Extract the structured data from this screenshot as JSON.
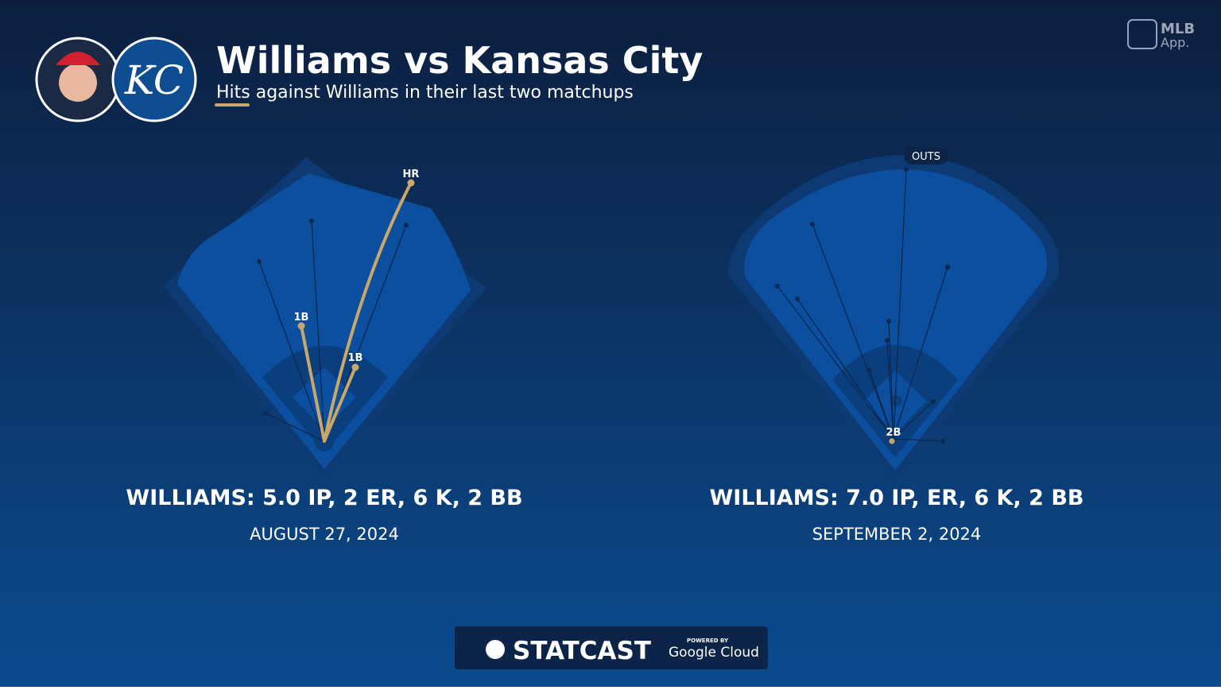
{
  "header": {
    "title": "Williams vs Kansas City",
    "subtitle": "Hits against Williams in their last two matchups",
    "team_logo": "KC"
  },
  "brand": {
    "mlb": "MLB",
    "app": "App.",
    "statcast": "STATCAST",
    "powered_by": "POWERED BY",
    "cloud": "Google Cloud"
  },
  "games": [
    {
      "line": "WILLIAMS: 5.0 IP, 2 ER, 6 K, 2 BB",
      "date": "AUGUST 27, 2024",
      "hits": [
        "HR",
        "1B",
        "1B"
      ]
    },
    {
      "line": "WILLIAMS: 7.0 IP, ER, 6 K, 2 BB",
      "date": "SEPTEMBER 2, 2024",
      "hits": [
        "2B"
      ],
      "outs_label": "OUTS"
    }
  ]
}
